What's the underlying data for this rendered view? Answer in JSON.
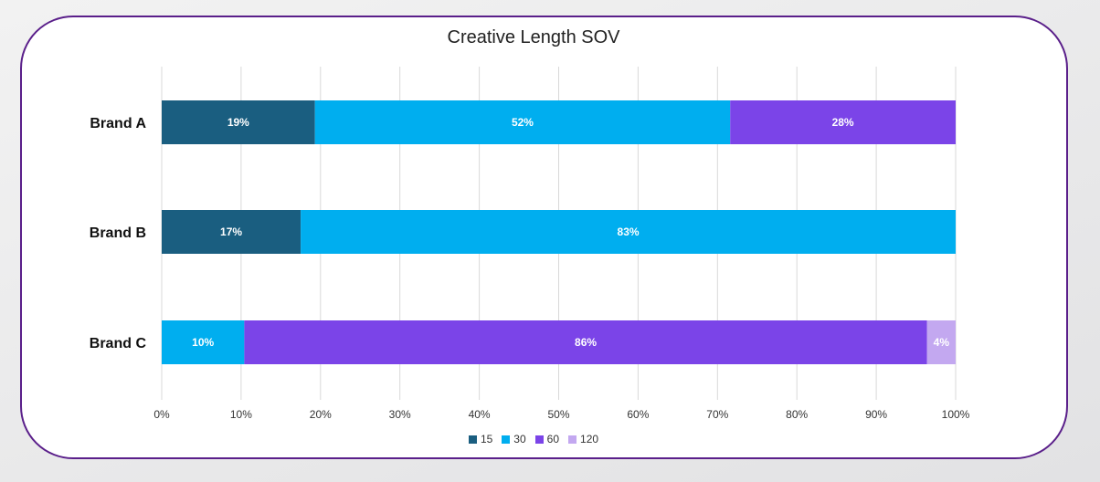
{
  "chart_data": {
    "type": "bar",
    "orientation": "horizontal",
    "stacked": true,
    "title": "Creative Length SOV",
    "categories": [
      "Brand A",
      "Brand B",
      "Brand C"
    ],
    "series": [
      {
        "name": "15",
        "color": "#1a5e80",
        "values": [
          19.3,
          17.5,
          0
        ]
      },
      {
        "name": "30",
        "color": "#00aeef",
        "values": [
          52.3,
          82.5,
          10.4
        ]
      },
      {
        "name": "60",
        "color": "#7b44e8",
        "values": [
          28.4,
          0,
          86.0
        ]
      },
      {
        "name": "120",
        "color": "#c3a8f0",
        "values": [
          0,
          0,
          3.6
        ]
      }
    ],
    "data_labels": [
      [
        "19%",
        "52%",
        "28%",
        ""
      ],
      [
        "17%",
        "83%",
        "",
        ""
      ],
      [
        "",
        "10%",
        "86%",
        "4%"
      ]
    ],
    "xlim": [
      0,
      100
    ],
    "x_ticks": [
      "0%",
      "10%",
      "20%",
      "30%",
      "40%",
      "50%",
      "60%",
      "70%",
      "80%",
      "90%",
      "100%"
    ],
    "grid": true,
    "legend_position": "bottom"
  }
}
